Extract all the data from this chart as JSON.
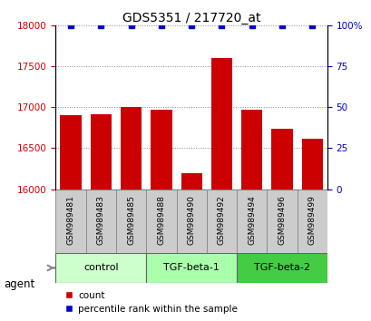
{
  "title": "GDS5351 / 217720_at",
  "samples": [
    "GSM989481",
    "GSM989483",
    "GSM989485",
    "GSM989488",
    "GSM989490",
    "GSM989492",
    "GSM989494",
    "GSM989496",
    "GSM989499"
  ],
  "counts": [
    16900,
    16920,
    17010,
    16970,
    16200,
    17600,
    16970,
    16740,
    16620
  ],
  "percentiles": [
    100,
    100,
    100,
    100,
    100,
    100,
    100,
    100,
    100
  ],
  "bar_color": "#cc0000",
  "dot_color": "#0000cc",
  "ylim_left": [
    16000,
    18000
  ],
  "ylim_right": [
    0,
    100
  ],
  "yticks_left": [
    16000,
    16500,
    17000,
    17500,
    18000
  ],
  "yticks_right": [
    0,
    25,
    50,
    75,
    100
  ],
  "ytick_right_labels": [
    "0",
    "25",
    "50",
    "75",
    "100%"
  ],
  "groups": [
    {
      "label": "control",
      "indices": [
        0,
        1,
        2
      ],
      "color": "#ccffcc"
    },
    {
      "label": "TGF-beta-1",
      "indices": [
        3,
        4,
        5
      ],
      "color": "#aaffaa"
    },
    {
      "label": "TGF-beta-2",
      "indices": [
        6,
        7,
        8
      ],
      "color": "#44cc44"
    }
  ],
  "agent_label": "agent",
  "legend_count_label": "count",
  "legend_pct_label": "percentile rank within the sample",
  "grid_color": "#888888",
  "sample_box_color": "#cccccc",
  "sample_box_edge_color": "#888888",
  "left_tick_color": "#cc0000",
  "right_tick_color": "#0000cc",
  "agent_arrow_color": "#888888"
}
